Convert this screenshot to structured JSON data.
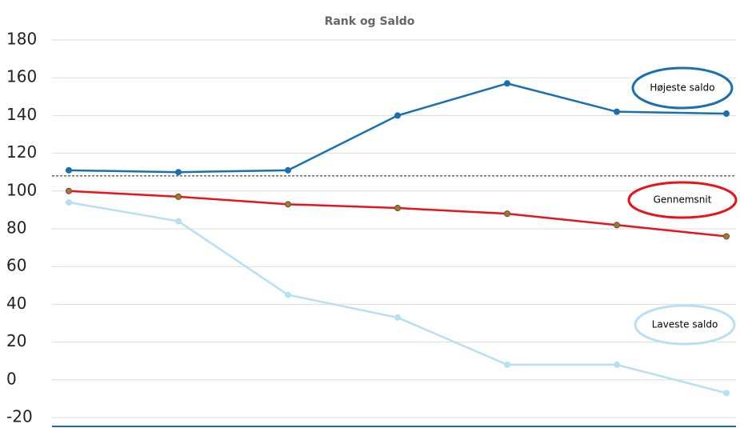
{
  "chart_data": {
    "type": "line",
    "title": "Rank og Saldo",
    "categories": [
      null,
      null,
      null,
      null,
      null,
      null,
      null
    ],
    "series": [
      {
        "name": "Højeste saldo",
        "color": "#1a6faf",
        "marker": "#1a6faf",
        "values": [
          111,
          110,
          111,
          140,
          157,
          142,
          141
        ]
      },
      {
        "name": "Gennemsnit",
        "color": "#e8141b",
        "marker": "#5a9a3c",
        "values": [
          100,
          97,
          93,
          91,
          88,
          82,
          76
        ]
      },
      {
        "name": "Laveste saldo",
        "color": "#b8dff2",
        "marker": "#b8dff2",
        "values": [
          94,
          84,
          45,
          33,
          8,
          8,
          -7
        ]
      }
    ],
    "reference_line": 108,
    "ylim": [
      -20,
      180
    ],
    "yticks": [
      -20,
      0,
      20,
      40,
      60,
      80,
      100,
      120,
      140,
      160,
      180
    ],
    "grid": true
  }
}
